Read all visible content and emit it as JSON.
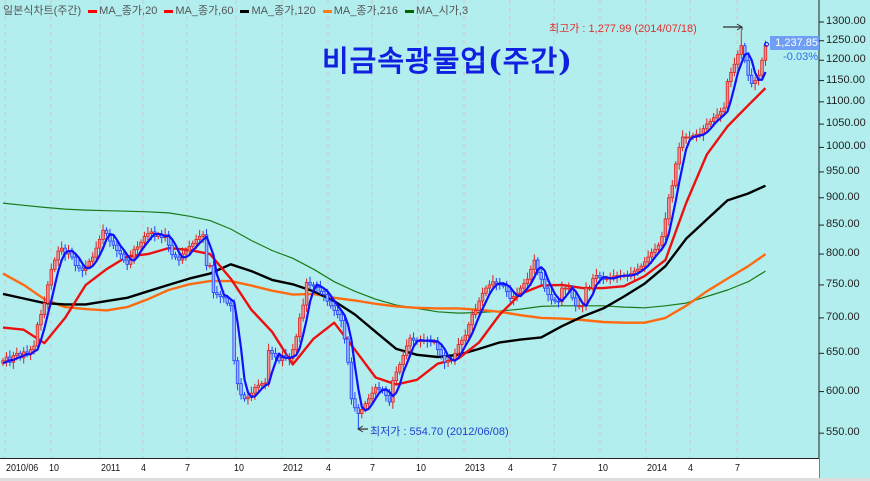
{
  "legend": {
    "chart_type": "일본식차트(주간)",
    "items": [
      {
        "label": "MA_종가,20",
        "color": "#ff0000"
      },
      {
        "label": "MA_종가,60",
        "color": "#ff0000"
      },
      {
        "label": "MA_종가,120",
        "color": "#000000"
      },
      {
        "label": "MA_종가,216",
        "color": "#ff7a1a"
      },
      {
        "label": "MA_시가,3",
        "color": "#006400"
      }
    ]
  },
  "title": "비금속광물업(주간)",
  "current": {
    "price": "1,237.85",
    "change": "-0.03%"
  },
  "annotations": {
    "max": "최고가 : 1,277.99 (2014/07/18)",
    "min": "최저가 : 554.70 (2012/06/08)"
  },
  "colors": {
    "background": "#b3eeee",
    "up": "#e02020",
    "down": "#2040ff",
    "ma3_line": "#1010ff",
    "ma_red": "#ee1010",
    "ma_black": "#000000",
    "ma_orange": "#ff6a10",
    "ma_green": "#1a7a1a"
  },
  "chart_data": {
    "type": "candlestick",
    "y_scale": "log",
    "ylim": [
      530,
      1330
    ],
    "y_ticks": [
      "1300.00",
      "1250.00",
      "1200.00",
      "1150.00",
      "1100.00",
      "1050.00",
      "1000.00",
      "950.00",
      "900.00",
      "850.00",
      "800.00",
      "750.00",
      "700.00",
      "650.00",
      "600.00",
      "550.00"
    ],
    "x_ticks": [
      "2010/06",
      "10",
      "2011",
      "4",
      "7",
      "10",
      "2012",
      "4",
      "7",
      "10",
      "2013",
      "4",
      "7",
      "10",
      "2014",
      "4",
      "7"
    ],
    "weekly_close": [
      640,
      645,
      638,
      647,
      650,
      644,
      652,
      650,
      655,
      660,
      690,
      705,
      722,
      750,
      775,
      790,
      805,
      810,
      800,
      806,
      795,
      781,
      777,
      773,
      780,
      788,
      795,
      810,
      825,
      841,
      835,
      822,
      815,
      806,
      800,
      790,
      783,
      795,
      808,
      812,
      820,
      830,
      835,
      838,
      830,
      833,
      828,
      833,
      815,
      799,
      795,
      790,
      800,
      805,
      813,
      818,
      825,
      830,
      833,
      781,
      781,
      738,
      735,
      732,
      730,
      722,
      718,
      640,
      610,
      596,
      591,
      593,
      598,
      605,
      608,
      610,
      611,
      654,
      650,
      645,
      640,
      647,
      645,
      643,
      655,
      673,
      700,
      719,
      754,
      750,
      748,
      746,
      740,
      735,
      725,
      718,
      711,
      705,
      696,
      670,
      638,
      591,
      580,
      573,
      578,
      585,
      591,
      598,
      605,
      603,
      601,
      595,
      587,
      614,
      625,
      635,
      647,
      660,
      671,
      668,
      666,
      668,
      668,
      667,
      666,
      666,
      655,
      647,
      638,
      640,
      642,
      650,
      662,
      668,
      675,
      690,
      705,
      711,
      725,
      737,
      745,
      750,
      755,
      752,
      750,
      749,
      740,
      729,
      732,
      737,
      745,
      752,
      759,
      775,
      790,
      770,
      759,
      745,
      735,
      727,
      725,
      724,
      745,
      745,
      745,
      730,
      718,
      718,
      718,
      745,
      745,
      760,
      765,
      762,
      759,
      760,
      762,
      764,
      765,
      765,
      765,
      765,
      768,
      772,
      775,
      780,
      787,
      795,
      803,
      808,
      815,
      830,
      861,
      900,
      923,
      966,
      1000,
      1022,
      1022,
      1022,
      1025,
      1028,
      1028,
      1040,
      1050,
      1056,
      1064,
      1070,
      1078,
      1086,
      1148,
      1170,
      1190,
      1215,
      1237,
      1200,
      1163,
      1143,
      1150,
      1163,
      1200,
      1237.85
    ],
    "max": {
      "value": 1277.99,
      "date": "2014/07/18"
    },
    "min": {
      "value": 554.7,
      "date": "2012/06/08"
    },
    "ma_lines": [
      {
        "key": "ma_red",
        "values": [
          686,
          683,
          664,
          700,
          750,
          775,
          796,
          800,
          810,
          807,
          800,
          760,
          712,
          680,
          635,
          670,
          693,
          655,
          618,
          609,
          615,
          636,
          643,
          665,
          705,
          736,
          749,
          750,
          745,
          745,
          748,
          764,
          790,
          890,
          985,
          1045,
          1092,
          1132
        ]
      },
      {
        "key": "ma_black",
        "values": [
          736,
          729,
          722,
          720,
          720,
          725,
          730,
          740,
          750,
          760,
          768,
          783,
          772,
          758,
          751,
          740,
          725,
          705,
          680,
          656,
          648,
          645,
          648,
          656,
          665,
          669,
          672,
          688,
          702,
          714,
          732,
          752,
          780,
          826,
          860,
          895,
          908,
          923
        ]
      },
      {
        "key": "ma_orange",
        "values": [
          768,
          750,
          728,
          716,
          713,
          711,
          716,
          728,
          742,
          751,
          756,
          756,
          749,
          741,
          735,
          736,
          730,
          726,
          721,
          717,
          715,
          714,
          714,
          712,
          709,
          704,
          700,
          699,
          697,
          694,
          693,
          693,
          700,
          718,
          740,
          760,
          780,
          800
        ]
      },
      {
        "key": "ma_green",
        "values": [
          890,
          886,
          882,
          879,
          877,
          876,
          875,
          874,
          872,
          866,
          858,
          843,
          823,
          806,
          793,
          775,
          755,
          740,
          728,
          719,
          714,
          709,
          707,
          708,
          710,
          713,
          717,
          718,
          718,
          718,
          716,
          715,
          718,
          722,
          732,
          742,
          755,
          772
        ]
      }
    ]
  }
}
